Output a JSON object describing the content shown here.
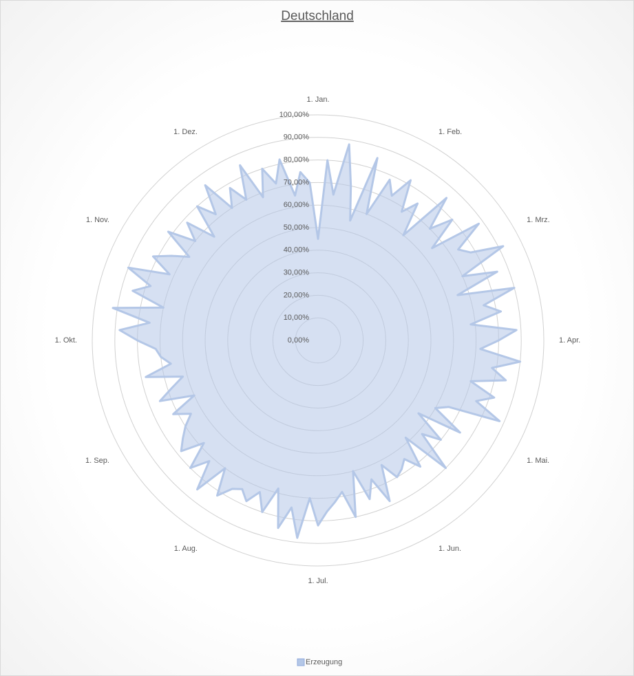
{
  "chart_data": {
    "type": "radar",
    "title": "Deutschland",
    "categories": [
      "1. Jan.",
      null,
      null,
      null,
      null,
      null,
      null,
      null,
      null,
      null,
      "1. Feb.",
      null,
      null,
      null,
      null,
      null,
      null,
      null,
      null,
      null,
      "1. Mrz.",
      null,
      null,
      null,
      null,
      null,
      null,
      null,
      null,
      null,
      "1. Apr.",
      null,
      null,
      null,
      null,
      null,
      null,
      null,
      null,
      null,
      "1. Mai.",
      null,
      null,
      null,
      null,
      null,
      null,
      null,
      null,
      null,
      "1. Jun.",
      null,
      null,
      null,
      null,
      null,
      null,
      null,
      null,
      null,
      "1. Jul.",
      null,
      null,
      null,
      null,
      null,
      null,
      null,
      null,
      null,
      "1. Aug.",
      null,
      null,
      null,
      null,
      null,
      null,
      null,
      null,
      null,
      "1. Sep.",
      null,
      null,
      null,
      null,
      null,
      null,
      null,
      null,
      null,
      "1. Okt.",
      null,
      null,
      null,
      null,
      null,
      null,
      null,
      null,
      null,
      "1. Nov.",
      null,
      null,
      null,
      null,
      null,
      null,
      null,
      null,
      null,
      "1. Dez.",
      null,
      null,
      null,
      null,
      null,
      null,
      null,
      null,
      null
    ],
    "series": [
      {
        "name": "Erzeugung",
        "color": "#b4c7e7",
        "values": [
          45,
          80,
          65,
          88,
          70,
          55,
          85,
          60,
          78,
          72,
          82,
          68,
          75,
          60,
          85,
          70,
          80,
          65,
          88,
          74,
          78,
          92,
          70,
          85,
          65,
          90,
          75,
          82,
          68,
          88,
          80,
          72,
          90,
          78,
          85,
          70,
          82,
          75,
          88,
          65,
          60,
          75,
          55,
          70,
          62,
          80,
          58,
          72,
          65,
          68,
          70,
          62,
          78,
          66,
          74,
          60,
          80,
          68,
          72,
          76,
          82,
          70,
          88,
          75,
          85,
          68,
          80,
          72,
          78,
          74,
          76,
          82,
          70,
          85,
          72,
          80,
          68,
          78,
          74,
          70,
          65,
          72,
          60,
          75,
          68,
          62,
          78,
          66,
          70,
          72,
          80,
          88,
          75,
          92,
          70,
          85,
          78,
          90,
          72,
          82,
          75,
          68,
          82,
          70,
          78,
          65,
          80,
          72,
          85,
          70,
          78,
          70,
          85,
          68,
          80,
          72,
          82,
          65,
          75,
          70
        ]
      }
    ],
    "ylim": [
      0,
      100
    ],
    "yticks": [
      {
        "value": 0,
        "label": "0,00%"
      },
      {
        "value": 10,
        "label": "10,00%"
      },
      {
        "value": 20,
        "label": "20,00%"
      },
      {
        "value": 30,
        "label": "30,00%"
      },
      {
        "value": 40,
        "label": "40,00%"
      },
      {
        "value": 50,
        "label": "50,00%"
      },
      {
        "value": 60,
        "label": "60,00%"
      },
      {
        "value": 70,
        "label": "70,00%"
      },
      {
        "value": 80,
        "label": "80,00%"
      },
      {
        "value": 90,
        "label": "90,00%"
      },
      {
        "value": 100,
        "label": "100,00%"
      }
    ],
    "grid": true
  }
}
